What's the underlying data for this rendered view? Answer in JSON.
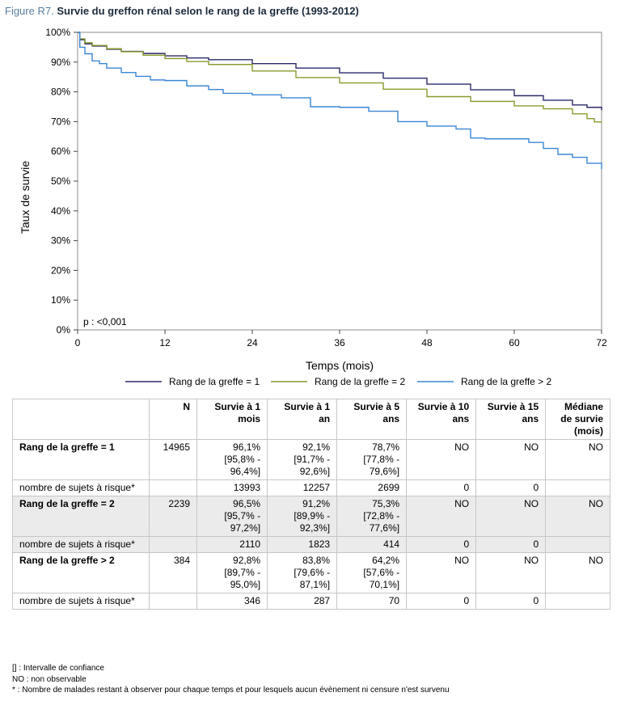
{
  "figure": {
    "label": "Figure R7.",
    "title": "Survie du greffon rénal selon le rang de la greffe (1993-2012)"
  },
  "chart_data": {
    "type": "line",
    "step": true,
    "xlabel": "Temps (mois)",
    "ylabel": "Taux de survie",
    "xlim": [
      0,
      72
    ],
    "ylim": [
      0,
      100
    ],
    "xticks": [
      "0",
      "12",
      "24",
      "36",
      "48",
      "60",
      "72"
    ],
    "yticks": [
      "0%",
      "10%",
      "20%",
      "30%",
      "40%",
      "50%",
      "60%",
      "70%",
      "80%",
      "90%",
      "100%"
    ],
    "annotation": "p : <0,001",
    "legend_position": "bottom",
    "grid": false,
    "series": [
      {
        "name": "Rang de la greffe = 1",
        "color": "#2b2a6a",
        "x": [
          0,
          0.3,
          1,
          2,
          4,
          6,
          9,
          12,
          15,
          18,
          24,
          30,
          36,
          42,
          48,
          54,
          60,
          64,
          68,
          70,
          72
        ],
        "y": [
          100,
          97.5,
          96.1,
          95.4,
          94.3,
          93.6,
          92.9,
          92.1,
          91.4,
          90.8,
          89.5,
          88.0,
          86.4,
          84.6,
          82.6,
          80.7,
          78.7,
          77.2,
          75.6,
          74.8,
          73.8
        ]
      },
      {
        "name": "Rang de la greffe = 2",
        "color": "#8a9a2e",
        "x": [
          0,
          0.3,
          1,
          2,
          4,
          6,
          9,
          12,
          15,
          18,
          24,
          30,
          36,
          42,
          48,
          54,
          60,
          64,
          68,
          70,
          71,
          72
        ],
        "y": [
          100,
          97.8,
          96.5,
          95.6,
          94.5,
          93.5,
          92.3,
          91.2,
          90.2,
          89.2,
          87.0,
          84.8,
          83.0,
          80.9,
          78.4,
          76.8,
          75.3,
          74.3,
          72.6,
          71.0,
          69.9,
          69.7
        ]
      },
      {
        "name": "Rang de la greffe > 2",
        "color": "#3b86d4",
        "x": [
          0,
          0.3,
          1,
          2,
          3,
          4,
          6,
          8,
          10,
          12,
          15,
          18,
          20,
          24,
          28,
          32,
          36,
          40,
          44,
          48,
          52,
          54,
          56,
          60,
          62,
          64,
          66,
          68,
          70,
          71,
          72
        ],
        "y": [
          100,
          95.0,
          92.8,
          90.4,
          89.5,
          88.0,
          86.5,
          85.2,
          84.0,
          83.8,
          82.0,
          80.8,
          79.5,
          79.0,
          78.0,
          75.0,
          74.8,
          73.5,
          70.0,
          68.5,
          67.5,
          64.5,
          64.2,
          64.2,
          63.0,
          61.0,
          59.0,
          58.0,
          56.0,
          56.0,
          54.0
        ]
      }
    ]
  },
  "table": {
    "headers": [
      "",
      "N",
      "Survie à 1 mois",
      "Survie à 1 an",
      "Survie à 5 ans",
      "Survie à 10 ans",
      "Survie à 15 ans",
      "Médiane de survie (mois)"
    ],
    "rows": [
      [
        "Rang de la greffe = 1",
        "14965",
        "96,1% [95,8% - 96,4%]",
        "92,1% [91,7% - 92,6%]",
        "78,7% [77,8% - 79,6%]",
        "NO",
        "NO",
        "NO"
      ],
      [
        "nombre de sujets à risque*",
        "",
        "13993",
        "12257",
        "2699",
        "0",
        "0",
        ""
      ],
      [
        "Rang de la greffe = 2",
        "2239",
        "96,5% [95,7% - 97,2%]",
        "91,2% [89,9% - 92,3%]",
        "75,3% [72,8% - 77,6%]",
        "NO",
        "NO",
        "NO"
      ],
      [
        "nombre de sujets à risque*",
        "",
        "2110",
        "1823",
        "414",
        "0",
        "0",
        ""
      ],
      [
        "Rang de la greffe > 2",
        "384",
        "92,8% [89,7% - 95,0%]",
        "83,8% [79,6% - 87,1%]",
        "64,2% [57,6% - 70,1%]",
        "NO",
        "NO",
        "NO"
      ],
      [
        "nombre de sujets à risque*",
        "",
        "346",
        "287",
        "70",
        "0",
        "0",
        ""
      ]
    ]
  },
  "notes": [
    "[] : Intervalle de confiance",
    "NO : non observable",
    "* : Nombre de malades restant à observer pour chaque temps et pour lesquels aucun évènement ni censure n'est survenu"
  ]
}
